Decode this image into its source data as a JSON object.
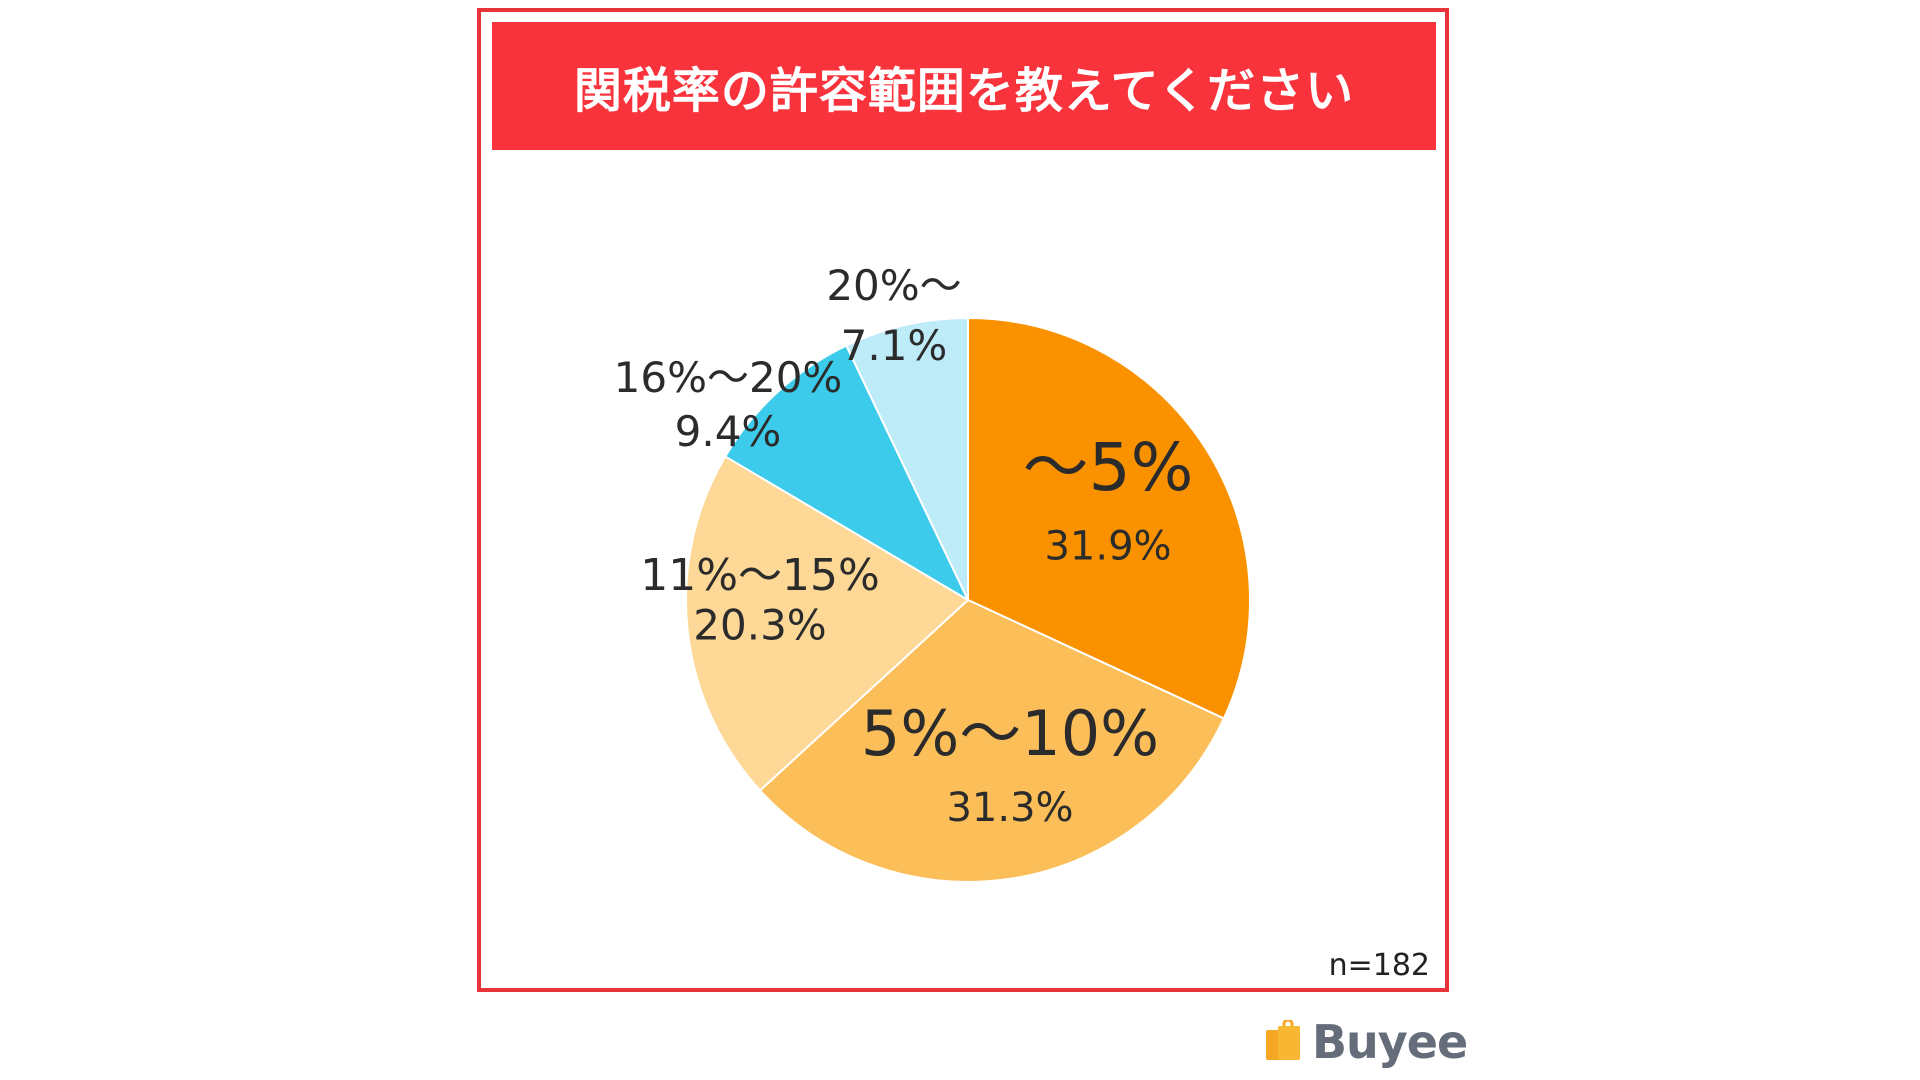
{
  "title": "関税率の許容範囲を教えてください",
  "sample_size": "n=182",
  "brand": {
    "name": "Buyee",
    "icon": "shopping-bag-icon"
  },
  "chart_data": {
    "type": "pie",
    "title": "関税率の許容範囲を教えてください",
    "slices": [
      {
        "label": "〜5%",
        "value": 31.9,
        "value_label": "31.9%",
        "color": "#fa9200"
      },
      {
        "label": "5%〜10%",
        "value": 31.3,
        "value_label": "31.3%",
        "color": "#fcbe58"
      },
      {
        "label": "11%〜15%",
        "value": 20.3,
        "value_label": "20.3%",
        "color": "#fdd897"
      },
      {
        "label": "16%〜20%",
        "value": 9.4,
        "value_label": "9.4%",
        "color": "#3ccbea"
      },
      {
        "label": "20%〜",
        "value": 7.1,
        "value_label": "7.1%",
        "color": "#bdebf8"
      }
    ],
    "start": "12 o'clock",
    "direction": "clockwise",
    "legend": "none"
  }
}
